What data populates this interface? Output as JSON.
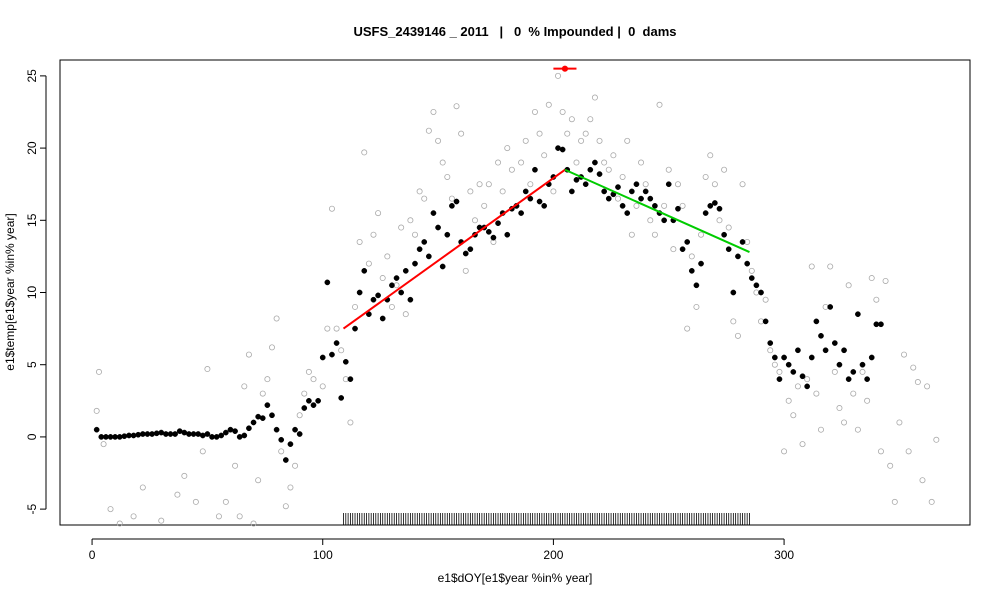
{
  "chart_data": {
    "type": "scatter",
    "title": "USFS_2439146 _ 2011   |   0  % Impounded |  0  dams",
    "xlabel": "e1$dOY[e1$year %in% year]",
    "ylabel": "e1$temp[e1$year %in% year]",
    "xlim": [
      -13.9,
      380.6
    ],
    "ylim": [
      -6.1,
      26.1
    ],
    "xticks": [
      0,
      100,
      200,
      300
    ],
    "yticks": [
      -5,
      0,
      5,
      10,
      15,
      20,
      25
    ],
    "grid": false,
    "series": [
      {
        "color": "#aaaaaa",
        "filled": false,
        "x": [
          2,
          3,
          5,
          8,
          12,
          18,
          22,
          30,
          37,
          40,
          45,
          48,
          50,
          55,
          58,
          62,
          64,
          66,
          68,
          70,
          72,
          74,
          76,
          78,
          80,
          82,
          84,
          86,
          88,
          90,
          92,
          94,
          96,
          100,
          102,
          104,
          106,
          108,
          110,
          112,
          114,
          116,
          118,
          120,
          122,
          124,
          126,
          128,
          130,
          132,
          134,
          136,
          138,
          140,
          142,
          144,
          146,
          148,
          150,
          152,
          154,
          156,
          158,
          160,
          162,
          164,
          166,
          168,
          170,
          172,
          174,
          176,
          178,
          180,
          182,
          184,
          186,
          188,
          190,
          192,
          194,
          196,
          198,
          200,
          202,
          204,
          206,
          208,
          210,
          212,
          214,
          216,
          218,
          220,
          222,
          224,
          226,
          228,
          230,
          232,
          234,
          236,
          238,
          240,
          242,
          244,
          246,
          248,
          250,
          252,
          254,
          256,
          258,
          260,
          262,
          264,
          266,
          268,
          270,
          272,
          274,
          276,
          278,
          280,
          282,
          284,
          286,
          288,
          290,
          292,
          294,
          296,
          298,
          300,
          302,
          304,
          306,
          308,
          310,
          312,
          314,
          316,
          318,
          320,
          322,
          324,
          326,
          328,
          330,
          332,
          334,
          336,
          338,
          340,
          342,
          344,
          346,
          348,
          350,
          352,
          354,
          356,
          358,
          360,
          362,
          364,
          366
        ],
        "values": [
          1.8,
          4.5,
          -0.5,
          -5,
          -6,
          -5.5,
          -3.5,
          -5.8,
          -4,
          -2.7,
          -4.5,
          -1,
          4.7,
          -5.5,
          -4.5,
          -2,
          -5.5,
          3.5,
          5.7,
          -6,
          -3,
          3,
          4,
          6.2,
          8.2,
          -1,
          -4.8,
          -3.5,
          -2,
          1.5,
          3,
          4.5,
          4,
          3.5,
          7.5,
          15.8,
          7.5,
          6,
          4,
          1,
          9,
          13.5,
          19.7,
          12,
          14,
          15.5,
          11,
          12.5,
          9,
          10.5,
          14.5,
          8.5,
          15,
          14,
          17,
          16.5,
          21.2,
          22.5,
          20.5,
          19,
          18,
          16.5,
          22.9,
          21,
          11.5,
          17,
          15,
          17.5,
          16,
          17.5,
          13.5,
          19,
          17,
          20,
          18.5,
          16,
          19,
          20.5,
          17.5,
          22.5,
          21,
          19.5,
          23,
          17,
          25,
          22.5,
          21,
          22,
          19,
          20.5,
          21,
          22,
          23.5,
          20.5,
          19,
          18.5,
          19.5,
          16.5,
          18,
          20.5,
          14,
          16,
          19,
          17.5,
          15,
          14,
          23,
          16,
          18.5,
          13,
          17.5,
          16,
          7.5,
          12.5,
          9,
          14,
          18,
          19.5,
          17.5,
          15,
          18.5,
          14.5,
          8,
          7,
          17.5,
          13.5,
          11.5,
          10,
          8,
          9.5,
          6,
          5,
          4.5,
          -1,
          2.5,
          1.5,
          3.5,
          -0.5,
          4,
          11.8,
          3,
          0.5,
          9,
          11.8,
          4.5,
          2,
          1,
          10.5,
          3,
          0.5,
          4.5,
          2.5,
          11,
          9.5,
          -1,
          10.8,
          -2,
          -4.5,
          1,
          5.7,
          -1,
          4.8,
          3.8,
          -3,
          3.5,
          -4.5,
          -0.2
        ]
      },
      {
        "color": "#000000",
        "filled": true,
        "x": [
          2,
          4,
          6,
          8,
          10,
          12,
          14,
          16,
          18,
          20,
          22,
          24,
          26,
          28,
          30,
          32,
          34,
          36,
          38,
          40,
          42,
          44,
          46,
          48,
          50,
          52,
          54,
          56,
          58,
          60,
          62,
          64,
          66,
          68,
          70,
          72,
          74,
          76,
          78,
          80,
          82,
          84,
          86,
          88,
          90,
          92,
          94,
          96,
          98,
          100,
          102,
          104,
          106,
          108,
          110,
          112,
          114,
          116,
          118,
          120,
          122,
          124,
          126,
          128,
          130,
          132,
          134,
          136,
          138,
          140,
          142,
          144,
          146,
          148,
          150,
          152,
          154,
          156,
          158,
          160,
          162,
          164,
          166,
          168,
          170,
          172,
          174,
          176,
          178,
          180,
          182,
          184,
          186,
          188,
          190,
          192,
          194,
          196,
          198,
          200,
          202,
          204,
          206,
          208,
          210,
          212,
          214,
          216,
          218,
          220,
          222,
          224,
          226,
          228,
          230,
          232,
          234,
          236,
          238,
          240,
          242,
          244,
          246,
          248,
          250,
          252,
          254,
          256,
          258,
          260,
          262,
          264,
          266,
          268,
          270,
          272,
          274,
          276,
          278,
          280,
          282,
          284,
          286,
          288,
          290,
          292,
          294,
          296,
          298,
          300,
          302,
          304,
          306,
          308,
          310,
          312,
          314,
          316,
          318,
          320,
          322,
          324,
          326,
          328,
          330,
          332,
          334,
          336,
          338,
          340,
          342
        ],
        "values": [
          0.5,
          0,
          0,
          0,
          0,
          0,
          0.05,
          0.1,
          0.1,
          0.15,
          0.2,
          0.2,
          0.2,
          0.25,
          0.3,
          0.2,
          0.2,
          0.2,
          0.4,
          0.3,
          0.2,
          0.2,
          0.2,
          0.1,
          0.2,
          0,
          0,
          0.1,
          0.3,
          0.5,
          0.4,
          0,
          0.1,
          0.6,
          1,
          1.4,
          1.3,
          2.2,
          1.5,
          0.5,
          -0.2,
          -1.6,
          -0.5,
          0.5,
          0.2,
          2,
          2.5,
          2.2,
          2.5,
          5.5,
          10.7,
          5.7,
          6.5,
          2.7,
          5.2,
          4,
          7.5,
          10,
          11.5,
          8.5,
          9.5,
          9.8,
          8.2,
          9.5,
          10.5,
          11,
          10,
          11.5,
          9.5,
          12,
          13,
          13.5,
          12.5,
          15.5,
          14.5,
          11.8,
          14,
          16,
          16.3,
          13.5,
          12.7,
          13,
          14,
          14.5,
          14.5,
          14.2,
          13.8,
          14.8,
          15.5,
          14,
          15.8,
          16,
          15.5,
          17,
          16.5,
          18.5,
          16.3,
          16,
          17.5,
          18,
          20,
          19.9,
          18.5,
          17,
          17.8,
          18,
          17.5,
          18.5,
          19,
          18.2,
          17,
          16.5,
          16.8,
          17.3,
          16,
          15.5,
          17,
          17.5,
          16.5,
          17,
          16.5,
          16,
          15.5,
          15,
          17.5,
          15,
          15.8,
          13,
          13.5,
          11.5,
          10.5,
          12,
          15.5,
          16,
          16.2,
          15.8,
          14,
          13,
          10,
          12.5,
          13.5,
          12,
          11,
          10.5,
          10,
          8,
          6.5,
          5.5,
          4,
          5.5,
          5,
          4.5,
          6,
          4.2,
          3.5,
          5.5,
          8,
          7,
          6,
          9,
          6.5,
          5,
          6,
          4,
          4.5,
          8.5,
          5,
          4,
          5.5,
          7.8,
          7.8
        ]
      }
    ],
    "lines": [
      {
        "color": "#ff0000",
        "x": [
          109,
          205
        ],
        "values": [
          7.5,
          18.5
        ]
      },
      {
        "color": "#00cc00",
        "x": [
          205,
          285
        ],
        "values": [
          18.5,
          12.8
        ]
      }
    ],
    "marker": {
      "color": "#ff0000",
      "x": 205,
      "value": 25.5,
      "xrange": [
        200,
        210
      ]
    },
    "rug": [
      109,
      110,
      111,
      112,
      113,
      114,
      115,
      116,
      117,
      118,
      119,
      120,
      121,
      122,
      123,
      124,
      125,
      126,
      127,
      128,
      129,
      130,
      131,
      132,
      133,
      134,
      135,
      136,
      137,
      138,
      139,
      140,
      141,
      142,
      143,
      144,
      145,
      146,
      147,
      148,
      149,
      150,
      151,
      152,
      153,
      154,
      155,
      156,
      157,
      158,
      159,
      160,
      161,
      162,
      163,
      164,
      165,
      166,
      167,
      168,
      169,
      170,
      171,
      172,
      173,
      174,
      175,
      176,
      177,
      178,
      179,
      180,
      181,
      182,
      183,
      184,
      185,
      186,
      187,
      188,
      189,
      190,
      191,
      192,
      193,
      194,
      195,
      196,
      197,
      198,
      199,
      200,
      201,
      202,
      203,
      204,
      205,
      206,
      207,
      208,
      209,
      210,
      211,
      212,
      213,
      214,
      215,
      216,
      217,
      218,
      219,
      220,
      221,
      222,
      223,
      224,
      225,
      226,
      227,
      228,
      229,
      230,
      231,
      232,
      233,
      234,
      235,
      236,
      237,
      238,
      239,
      240,
      241,
      242,
      243,
      244,
      245,
      246,
      247,
      248,
      249,
      250,
      251,
      252,
      253,
      254,
      255,
      256,
      257,
      258,
      259,
      260,
      261,
      262,
      263,
      264,
      265,
      266,
      267,
      268,
      269,
      270,
      271,
      272,
      273,
      274,
      275,
      276,
      277,
      278,
      279,
      280,
      281,
      282,
      283,
      284,
      285
    ]
  }
}
